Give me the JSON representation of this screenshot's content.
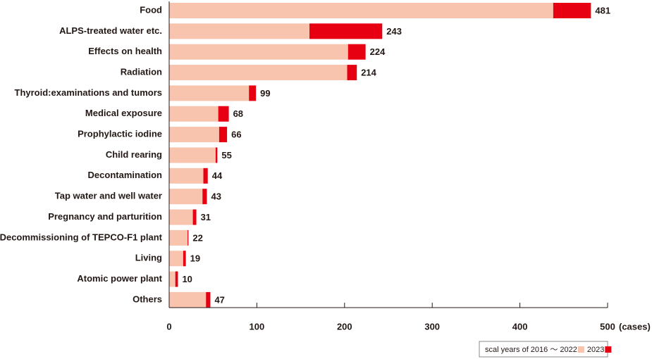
{
  "chart_data": {
    "type": "stacked-bar-horizontal",
    "categories": [
      "Food",
      "ALPS-treated water etc.",
      "Effects on health",
      "Radiation",
      "Thyroid:examinations and tumors",
      "Medical exposure",
      "Prophylactic iodine",
      "Child rearing",
      "Decontamination",
      "Tap water and well water",
      "Pregnancy and parturition",
      "Decommissioning of TEPCO-F1 plant",
      "Living",
      "Atomic power plant",
      "Others"
    ],
    "series": [
      {
        "name": "scal years of 2016 ～ 2022",
        "color": "#f8c4ae",
        "values": [
          438,
          160,
          204,
          203,
          91,
          56,
          57,
          53,
          39,
          38,
          27,
          21,
          16,
          7,
          42
        ]
      },
      {
        "name": "2023",
        "color": "#e60012",
        "values": [
          43,
          83,
          20,
          11,
          8,
          12,
          9,
          2,
          5,
          5,
          4,
          1,
          3,
          3,
          5
        ]
      }
    ],
    "totals": [
      481,
      243,
      224,
      214,
      99,
      68,
      66,
      55,
      44,
      43,
      31,
      22,
      19,
      10,
      47
    ],
    "xlim": [
      0,
      500
    ],
    "xticks": [
      0,
      100,
      200,
      300,
      400,
      500
    ],
    "x_unit": "(cases)"
  }
}
